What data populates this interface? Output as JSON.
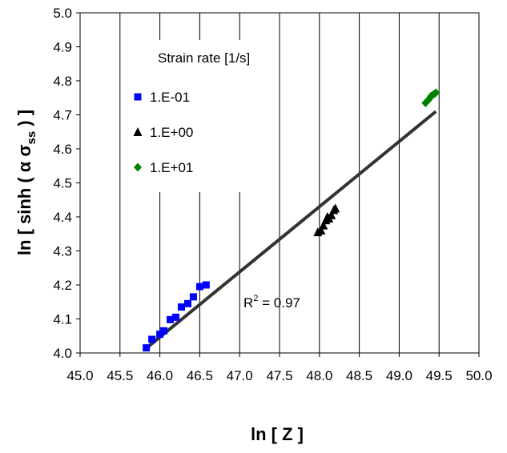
{
  "chart_data": {
    "type": "scatter",
    "xlabel": "ln [ Z ]",
    "ylabel": {
      "prefix": "ln [ sinh ( α σ",
      "subscript": "ss",
      "suffix": " ) ]"
    },
    "xlim": [
      45.0,
      50.0
    ],
    "ylim": [
      4.0,
      5.0
    ],
    "x_ticks": [
      "45.0",
      "45.5",
      "46.0",
      "46.5",
      "47.0",
      "47.5",
      "48.0",
      "48.5",
      "49.0",
      "49.5",
      "50.0"
    ],
    "y_ticks": [
      "4.0",
      "4.1",
      "4.2",
      "4.3",
      "4.4",
      "4.5",
      "4.6",
      "4.7",
      "4.8",
      "4.9",
      "5.0"
    ],
    "grid": "vertical",
    "legend": {
      "title": "Strain rate [1/s]",
      "placement": "top-left"
    },
    "series": [
      {
        "name": "1.E-01",
        "marker": "square",
        "color": "#0000ff",
        "points": [
          [
            45.83,
            4.015
          ],
          [
            45.9,
            4.04
          ],
          [
            46.0,
            4.055
          ],
          [
            46.05,
            4.065
          ],
          [
            46.13,
            4.098
          ],
          [
            46.2,
            4.105
          ],
          [
            46.27,
            4.135
          ],
          [
            46.35,
            4.145
          ],
          [
            46.42,
            4.165
          ],
          [
            46.5,
            4.195
          ],
          [
            46.58,
            4.2
          ]
        ]
      },
      {
        "name": "1.E+00",
        "marker": "triangle",
        "color": "#000000",
        "points": [
          [
            47.98,
            4.355
          ],
          [
            48.02,
            4.36
          ],
          [
            48.05,
            4.375
          ],
          [
            48.08,
            4.39
          ],
          [
            48.1,
            4.4
          ],
          [
            48.12,
            4.395
          ],
          [
            48.15,
            4.405
          ],
          [
            48.18,
            4.42
          ],
          [
            48.2,
            4.425
          ]
        ]
      },
      {
        "name": "1.E+01",
        "marker": "diamond",
        "color": "#008000",
        "points": [
          [
            49.33,
            4.735
          ],
          [
            49.37,
            4.745
          ],
          [
            49.4,
            4.755
          ],
          [
            49.43,
            4.76
          ],
          [
            49.46,
            4.765
          ]
        ]
      }
    ],
    "trendline": {
      "color": "#333333",
      "x": [
        45.82,
        49.46
      ],
      "y": [
        4.012,
        4.71
      ]
    },
    "annotation": {
      "prefix": "R",
      "superscript": "2",
      "suffix": " = 0.97"
    }
  }
}
